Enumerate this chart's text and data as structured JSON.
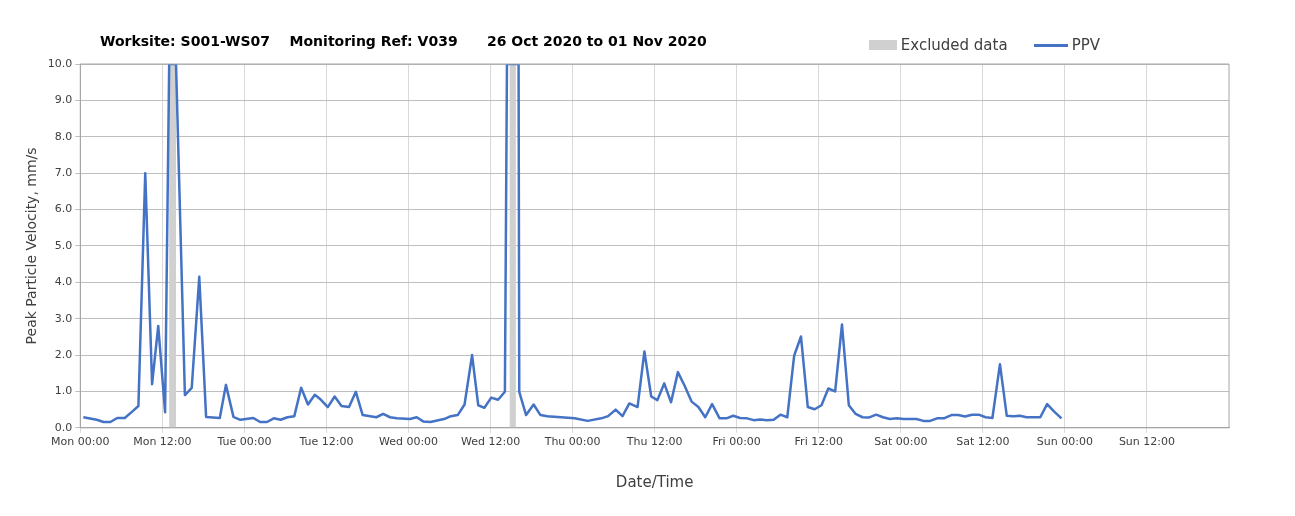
{
  "chart_data": {
    "type": "line",
    "title": "Worksite: S001-WS07    Monitoring Ref: V039      26 Oct 2020 to 01 Nov 2020",
    "xlabel": "Date/Time",
    "ylabel": "Peak Particle Velocity, mm/s",
    "x": [
      "2020-10-26T00:27",
      "2020-10-26T02:24",
      "2020-10-26T03:24",
      "2020-10-26T04:24",
      "2020-10-26T05:24",
      "2020-10-26T06:30",
      "2020-10-26T07:30",
      "2020-10-26T08:30",
      "2020-10-26T09:30",
      "2020-10-26T10:30",
      "2020-10-26T11:24",
      "2020-10-26T12:24",
      "2020-10-26T13:00",
      "2020-10-26T14:00",
      "2020-10-26T15:18",
      "2020-10-26T16:18",
      "2020-10-26T17:24",
      "2020-10-26T18:24",
      "2020-10-26T20:24",
      "2020-10-26T21:18",
      "2020-10-26T22:24",
      "2020-10-26T23:24",
      "2020-10-27T01:18",
      "2020-10-27T02:18",
      "2020-10-27T03:18",
      "2020-10-27T04:18",
      "2020-10-27T05:18",
      "2020-10-27T06:18",
      "2020-10-27T07:18",
      "2020-10-27T08:18",
      "2020-10-27T09:18",
      "2020-10-27T10:18",
      "2020-10-27T11:12",
      "2020-10-27T12:12",
      "2020-10-27T13:12",
      "2020-10-27T14:12",
      "2020-10-27T15:18",
      "2020-10-27T16:18",
      "2020-10-27T17:18",
      "2020-10-27T19:18",
      "2020-10-27T20:18",
      "2020-10-27T21:18",
      "2020-10-27T22:18",
      "2020-10-28T00:12",
      "2020-10-28T01:12",
      "2020-10-28T02:12",
      "2020-10-28T03:12",
      "2020-10-28T05:12",
      "2020-10-28T06:12",
      "2020-10-28T07:12",
      "2020-10-28T08:12",
      "2020-10-28T09:18",
      "2020-10-28T10:12",
      "2020-10-28T11:06",
      "2020-10-28T12:06",
      "2020-10-28T13:06",
      "2020-10-28T14:06",
      "2020-10-28T14:24",
      "2020-10-28T16:06",
      "2020-10-28T16:12",
      "2020-10-28T17:12",
      "2020-10-28T18:18",
      "2020-10-28T19:18",
      "2020-10-28T20:18",
      "2020-10-28T22:18",
      "2020-10-29T00:18",
      "2020-10-29T02:12",
      "2020-10-29T04:12",
      "2020-10-29T05:12",
      "2020-10-29T06:18",
      "2020-10-29T07:18",
      "2020-10-29T08:18",
      "2020-10-29T09:30",
      "2020-10-29T10:30",
      "2020-10-29T11:30",
      "2020-10-29T12:24",
      "2020-10-29T13:24",
      "2020-10-29T14:24",
      "2020-10-29T15:24",
      "2020-10-29T16:24",
      "2020-10-29T17:24",
      "2020-10-29T18:24",
      "2020-10-29T19:24",
      "2020-10-29T20:24",
      "2020-10-29T21:30",
      "2020-10-29T22:30",
      "2020-10-29T23:30",
      "2020-10-30T00:30",
      "2020-10-30T01:30",
      "2020-10-30T02:30",
      "2020-10-30T03:24",
      "2020-10-30T04:24",
      "2020-10-30T05:24",
      "2020-10-30T06:24",
      "2020-10-30T07:24",
      "2020-10-30T08:24",
      "2020-10-30T09:24",
      "2020-10-30T10:24",
      "2020-10-30T11:24",
      "2020-10-30T12:24",
      "2020-10-30T13:24",
      "2020-10-30T14:24",
      "2020-10-30T15:24",
      "2020-10-30T16:24",
      "2020-10-30T17:24",
      "2020-10-30T18:24",
      "2020-10-30T19:18",
      "2020-10-30T20:24",
      "2020-10-30T21:24",
      "2020-10-30T22:24",
      "2020-10-30T23:24",
      "2020-10-31T00:24",
      "2020-10-31T02:18",
      "2020-10-31T03:18",
      "2020-10-31T04:18",
      "2020-10-31T05:18",
      "2020-10-31T06:18",
      "2020-10-31T07:24",
      "2020-10-31T08:24",
      "2020-10-31T09:24",
      "2020-10-31T10:24",
      "2020-10-31T11:24",
      "2020-10-31T12:24",
      "2020-10-31T13:24",
      "2020-10-31T14:30",
      "2020-10-31T15:30",
      "2020-10-31T16:24",
      "2020-10-31T17:24",
      "2020-10-31T18:24",
      "2020-10-31T19:24",
      "2020-10-31T20:24",
      "2020-10-31T21:24",
      "2020-10-31T22:24",
      "2020-10-31T23:30"
    ],
    "series": [
      {
        "name": "PPV",
        "color": "#4472c4",
        "values": [
          0.29,
          0.22,
          0.16,
          0.16,
          0.27,
          0.27,
          0.43,
          0.6,
          7.0,
          1.2,
          2.8,
          0.43,
          10,
          10,
          0.9,
          1.1,
          4.15,
          0.3,
          0.27,
          1.18,
          0.3,
          0.22,
          0.27,
          0.16,
          0.16,
          0.26,
          0.22,
          0.29,
          0.32,
          1.1,
          0.64,
          0.91,
          0.77,
          0.57,
          0.86,
          0.6,
          0.57,
          0.99,
          0.35,
          0.29,
          0.38,
          0.29,
          0.26,
          0.24,
          0.29,
          0.17,
          0.16,
          0.24,
          0.32,
          0.35,
          0.64,
          2.0,
          0.62,
          0.55,
          0.83,
          0.77,
          0.99,
          10,
          10,
          0.99,
          0.35,
          0.64,
          0.35,
          0.32,
          0.29,
          0.26,
          0.19,
          0.26,
          0.32,
          0.5,
          0.32,
          0.67,
          0.57,
          2.1,
          0.86,
          0.76,
          1.22,
          0.7,
          1.53,
          1.15,
          0.72,
          0.57,
          0.29,
          0.65,
          0.26,
          0.26,
          0.33,
          0.27,
          0.26,
          0.21,
          0.23,
          0.21,
          0.22,
          0.36,
          0.29,
          1.98,
          2.51,
          0.57,
          0.51,
          0.62,
          1.08,
          1.0,
          2.84,
          0.62,
          0.38,
          0.29,
          0.28,
          0.36,
          0.29,
          0.24,
          0.26,
          0.24,
          0.24,
          0.19,
          0.19,
          0.26,
          0.26,
          0.35,
          0.35,
          0.31,
          0.36,
          0.36,
          0.29,
          0.27,
          1.75,
          0.33,
          0.32,
          0.33,
          0.29,
          0.29,
          0.29,
          0.65,
          0.45,
          0.26
        ]
      }
    ],
    "xlim": [
      "2020-10-26T00:00",
      "2020-11-02T00:00"
    ],
    "xticks": [
      {
        "value": "2020-10-26T00:00",
        "label": "Mon 00:00"
      },
      {
        "value": "2020-10-26T12:00",
        "label": "Mon 12:00"
      },
      {
        "value": "2020-10-27T00:00",
        "label": "Tue 00:00"
      },
      {
        "value": "2020-10-27T12:00",
        "label": "Tue 12:00"
      },
      {
        "value": "2020-10-28T00:00",
        "label": "Wed 00:00"
      },
      {
        "value": "2020-10-28T12:00",
        "label": "Wed 12:00"
      },
      {
        "value": "2020-10-29T00:00",
        "label": "Thu 00:00"
      },
      {
        "value": "2020-10-29T12:00",
        "label": "Thu 12:00"
      },
      {
        "value": "2020-10-30T00:00",
        "label": "Fri 00:00"
      },
      {
        "value": "2020-10-30T12:00",
        "label": "Fri 12:00"
      },
      {
        "value": "2020-10-31T00:00",
        "label": "Sat 00:00"
      },
      {
        "value": "2020-10-31T12:00",
        "label": "Sat 12:00"
      },
      {
        "value": "2020-11-01T00:00",
        "label": "Sun 00:00"
      },
      {
        "value": "2020-11-01T12:00",
        "label": "Sun 12:00"
      }
    ],
    "ylim": [
      0,
      10
    ],
    "yticks": [
      {
        "value": 0,
        "label": "0.0"
      },
      {
        "value": 1,
        "label": "1.0"
      },
      {
        "value": 2,
        "label": "2.0"
      },
      {
        "value": 3,
        "label": "3.0"
      },
      {
        "value": 4,
        "label": "4.0"
      },
      {
        "value": 5,
        "label": "5.0"
      },
      {
        "value": 6,
        "label": "6.0"
      },
      {
        "value": 7,
        "label": "7.0"
      },
      {
        "value": 8,
        "label": "8.0"
      },
      {
        "value": 9,
        "label": "9.0"
      },
      {
        "value": 10,
        "label": "10.0"
      }
    ],
    "bands": [
      {
        "axis": "x",
        "from": "2020-10-26T13:00",
        "to": "2020-10-26T14:00",
        "label": "Excluded data",
        "color": "#d0d0d0"
      },
      {
        "axis": "x",
        "from": "2020-10-28T14:48",
        "to": "2020-10-28T15:42",
        "color": "#d0d0d0"
      }
    ],
    "grid": true,
    "legend": "top right",
    "marker": "none",
    "line_style": "solid"
  }
}
